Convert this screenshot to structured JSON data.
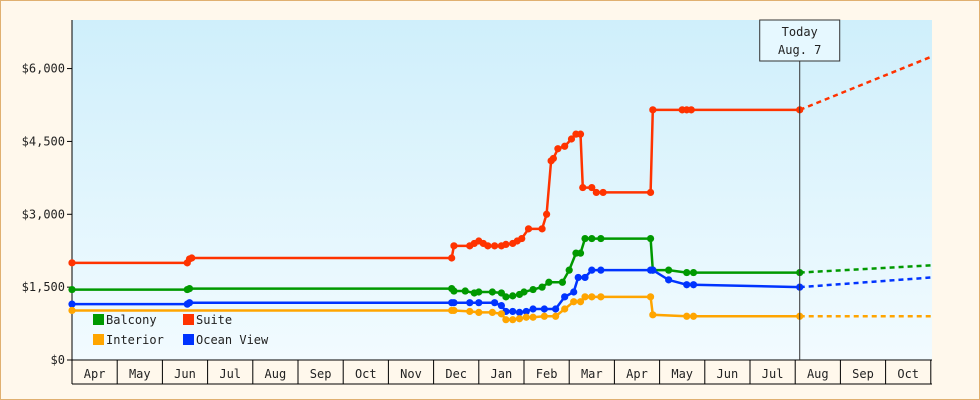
{
  "chart_data": {
    "type": "line",
    "y_axis": {
      "ticks": [
        "$0",
        "$1,500",
        "$3,000",
        "$4,500",
        "$6,000"
      ],
      "tick_values": [
        0,
        1500,
        3000,
        4500,
        6000
      ],
      "ylim": [
        0,
        7000
      ]
    },
    "x_axis": {
      "ticks": [
        "Apr",
        "May",
        "Jun",
        "Jul",
        "Aug",
        "Sep",
        "Oct",
        "Nov",
        "Dec",
        "Jan",
        "Feb",
        "Mar",
        "Apr",
        "May",
        "Jun",
        "Jul",
        "Aug",
        "Sep",
        "Oct"
      ],
      "xlim": [
        0,
        19
      ]
    },
    "grid": false,
    "legend_placement": "bottom-left",
    "today_marker": {
      "line1": "Today",
      "line2": "Aug. 7",
      "x": 16.1
    },
    "series": [
      {
        "name": "Suite",
        "color": "#ff3300",
        "points": [
          [
            0,
            2000
          ],
          [
            2.55,
            2000
          ],
          [
            2.6,
            2080
          ],
          [
            2.65,
            2100
          ],
          [
            8.4,
            2100
          ],
          [
            8.45,
            2350
          ],
          [
            8.8,
            2350
          ],
          [
            8.9,
            2400
          ],
          [
            9.0,
            2450
          ],
          [
            9.1,
            2400
          ],
          [
            9.2,
            2350
          ],
          [
            9.35,
            2350
          ],
          [
            9.5,
            2350
          ],
          [
            9.6,
            2380
          ],
          [
            9.75,
            2400
          ],
          [
            9.85,
            2450
          ],
          [
            9.95,
            2500
          ],
          [
            10.1,
            2700
          ],
          [
            10.4,
            2700
          ],
          [
            10.5,
            3000
          ],
          [
            10.6,
            4100
          ],
          [
            10.65,
            4150
          ],
          [
            10.75,
            4350
          ],
          [
            10.9,
            4400
          ],
          [
            11.05,
            4550
          ],
          [
            11.15,
            4650
          ],
          [
            11.25,
            4650
          ],
          [
            11.3,
            3550
          ],
          [
            11.5,
            3550
          ],
          [
            11.6,
            3450
          ],
          [
            11.75,
            3450
          ],
          [
            12.8,
            3450
          ],
          [
            12.85,
            5150
          ],
          [
            13.5,
            5150
          ],
          [
            13.6,
            5150
          ],
          [
            13.7,
            5150
          ],
          [
            16.1,
            5150
          ]
        ],
        "projection": [
          [
            16.1,
            5150
          ],
          [
            19.2,
            6250
          ]
        ]
      },
      {
        "name": "Balcony",
        "color": "#009900",
        "points": [
          [
            0,
            1450
          ],
          [
            2.55,
            1450
          ],
          [
            2.6,
            1470
          ],
          [
            8.4,
            1470
          ],
          [
            8.45,
            1420
          ],
          [
            8.7,
            1420
          ],
          [
            8.9,
            1380
          ],
          [
            9.0,
            1400
          ],
          [
            9.3,
            1400
          ],
          [
            9.5,
            1380
          ],
          [
            9.6,
            1300
          ],
          [
            9.75,
            1320
          ],
          [
            9.9,
            1350
          ],
          [
            10.0,
            1400
          ],
          [
            10.2,
            1450
          ],
          [
            10.4,
            1500
          ],
          [
            10.55,
            1600
          ],
          [
            10.85,
            1600
          ],
          [
            11.0,
            1850
          ],
          [
            11.15,
            2200
          ],
          [
            11.25,
            2200
          ],
          [
            11.35,
            2500
          ],
          [
            11.5,
            2500
          ],
          [
            11.7,
            2500
          ],
          [
            12.8,
            2500
          ],
          [
            12.85,
            1850
          ],
          [
            13.2,
            1850
          ],
          [
            13.6,
            1800
          ],
          [
            13.75,
            1800
          ],
          [
            16.1,
            1800
          ]
        ],
        "projection": [
          [
            16.1,
            1800
          ],
          [
            19.2,
            1950
          ]
        ]
      },
      {
        "name": "Ocean View",
        "color": "#0033ff",
        "points": [
          [
            0,
            1150
          ],
          [
            2.55,
            1150
          ],
          [
            2.6,
            1180
          ],
          [
            8.4,
            1180
          ],
          [
            8.45,
            1180
          ],
          [
            8.8,
            1180
          ],
          [
            9.0,
            1180
          ],
          [
            9.35,
            1180
          ],
          [
            9.5,
            1120
          ],
          [
            9.6,
            1000
          ],
          [
            9.75,
            1000
          ],
          [
            9.9,
            980
          ],
          [
            10.05,
            1000
          ],
          [
            10.2,
            1050
          ],
          [
            10.45,
            1050
          ],
          [
            10.7,
            1050
          ],
          [
            10.9,
            1300
          ],
          [
            11.1,
            1400
          ],
          [
            11.2,
            1700
          ],
          [
            11.35,
            1700
          ],
          [
            11.5,
            1850
          ],
          [
            11.7,
            1850
          ],
          [
            12.8,
            1850
          ],
          [
            12.85,
            1850
          ],
          [
            13.2,
            1650
          ],
          [
            13.6,
            1550
          ],
          [
            13.75,
            1550
          ],
          [
            16.1,
            1500
          ]
        ],
        "projection": [
          [
            16.1,
            1500
          ],
          [
            19.2,
            1700
          ]
        ]
      },
      {
        "name": "Interior",
        "color": "#ffa500",
        "points": [
          [
            0,
            1020
          ],
          [
            8.4,
            1020
          ],
          [
            8.45,
            1020
          ],
          [
            8.8,
            1000
          ],
          [
            9.0,
            980
          ],
          [
            9.3,
            980
          ],
          [
            9.5,
            950
          ],
          [
            9.6,
            830
          ],
          [
            9.75,
            830
          ],
          [
            9.9,
            850
          ],
          [
            10.05,
            880
          ],
          [
            10.2,
            880
          ],
          [
            10.45,
            900
          ],
          [
            10.7,
            900
          ],
          [
            10.9,
            1050
          ],
          [
            11.1,
            1200
          ],
          [
            11.25,
            1200
          ],
          [
            11.35,
            1300
          ],
          [
            11.5,
            1300
          ],
          [
            11.7,
            1300
          ],
          [
            12.8,
            1300
          ],
          [
            12.85,
            930
          ],
          [
            13.6,
            900
          ],
          [
            13.75,
            900
          ],
          [
            16.1,
            900
          ]
        ],
        "projection": [
          [
            16.1,
            900
          ],
          [
            19.2,
            900
          ]
        ]
      }
    ],
    "legend": [
      {
        "name": "Balcony",
        "color": "#009900"
      },
      {
        "name": "Suite",
        "color": "#ff3300"
      },
      {
        "name": "Interior",
        "color": "#ffa500"
      },
      {
        "name": "Ocean View",
        "color": "#0033ff"
      }
    ]
  }
}
